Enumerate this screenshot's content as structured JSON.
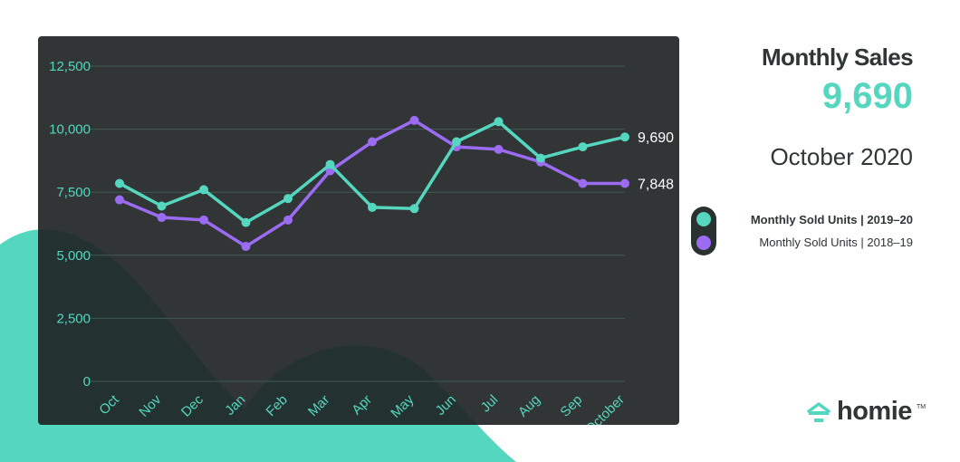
{
  "colors": {
    "teal": "#55d6be",
    "purple": "#9b6bf2",
    "panel": "#202425",
    "grid": "#3f5a52",
    "text_dark": "#303535"
  },
  "headline": {
    "title": "Monthly Sales",
    "value": "9,690",
    "period": "October 2020"
  },
  "legend": [
    {
      "label": "Monthly Sold Units  |  2019–20",
      "color": "#55d6be",
      "bold": true
    },
    {
      "label": "Monthly Sold Units  |  2018–19",
      "color": "#9b6bf2",
      "bold": false
    }
  ],
  "brand": {
    "name": "homie",
    "tm": "TM"
  },
  "chart_data": {
    "type": "line",
    "categories": [
      "Oct",
      "Nov",
      "Dec",
      "Jan",
      "Feb",
      "Mar",
      "Apr",
      "May",
      "Jun",
      "Jul",
      "Aug",
      "Sep",
      "October"
    ],
    "y_ticks": [
      "12,500",
      "10,000",
      "7,500",
      "5,000",
      "2,500",
      "0"
    ],
    "ylim": [
      0,
      12500
    ],
    "grid": true,
    "series": [
      {
        "name": "Monthly Sold Units | 2019–20",
        "color": "#55d6be",
        "values": [
          7850,
          6950,
          7600,
          6300,
          7250,
          8600,
          6900,
          6850,
          9500,
          10300,
          8850,
          9300,
          9690
        ],
        "end_label": "9,690"
      },
      {
        "name": "Monthly Sold Units | 2018–19",
        "color": "#9b6bf2",
        "values": [
          7200,
          6500,
          6400,
          5350,
          6400,
          8350,
          9500,
          10350,
          9300,
          9200,
          8700,
          7848,
          7848
        ],
        "end_label": "7,848"
      }
    ]
  }
}
